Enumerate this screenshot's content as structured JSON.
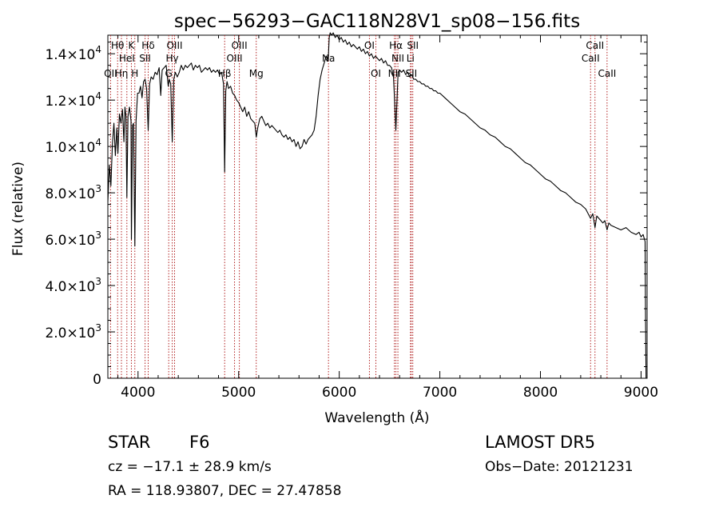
{
  "chart_data": {
    "type": "line",
    "title": "spec−56293−GAC118N28V1_sp08−156.fits",
    "xlabel": "Wavelength (Å)",
    "ylabel": "Flux (relative)",
    "xlim": [
      3700,
      9060
    ],
    "ylim": [
      0,
      14800
    ],
    "xticks": [
      4000,
      5000,
      6000,
      7000,
      8000,
      9000
    ],
    "xtick_labels": [
      "4000",
      "5000",
      "6000",
      "7000",
      "8000",
      "9000"
    ],
    "yticks": [
      0,
      2000,
      4000,
      6000,
      8000,
      10000,
      12000,
      14000
    ],
    "ytick_labels": [
      {
        "mant": "0",
        "exp": ""
      },
      {
        "mant": "2.0×10",
        "exp": "3"
      },
      {
        "mant": "4.0×10",
        "exp": "3"
      },
      {
        "mant": "6.0×10",
        "exp": "3"
      },
      {
        "mant": "8.0×10",
        "exp": "3"
      },
      {
        "mant": "1.0×10",
        "exp": "4"
      },
      {
        "mant": "1.2×10",
        "exp": "4"
      },
      {
        "mant": "1.4×10",
        "exp": "4"
      }
    ],
    "line_color": "#000000",
    "marker_color": "#b22222",
    "spectrum": [
      [
        3700,
        7600
      ],
      [
        3715,
        9200
      ],
      [
        3730,
        8300
      ],
      [
        3745,
        10100
      ],
      [
        3760,
        11000
      ],
      [
        3775,
        9600
      ],
      [
        3790,
        10800
      ],
      [
        3800,
        9700
      ],
      [
        3815,
        11400
      ],
      [
        3830,
        11000
      ],
      [
        3845,
        11600
      ],
      [
        3860,
        10200
      ],
      [
        3870,
        11700
      ],
      [
        3880,
        11300
      ],
      [
        3889,
        7800
      ],
      [
        3900,
        11300
      ],
      [
        3915,
        11700
      ],
      [
        3930,
        11100
      ],
      [
        3934,
        6000
      ],
      [
        3945,
        10900
      ],
      [
        3955,
        11000
      ],
      [
        3968,
        5700
      ],
      [
        3980,
        11100
      ],
      [
        3995,
        12300
      ],
      [
        4010,
        12300
      ],
      [
        4025,
        12600
      ],
      [
        4040,
        12100
      ],
      [
        4055,
        12800
      ],
      [
        4070,
        12900
      ],
      [
        4085,
        12500
      ],
      [
        4101,
        10700
      ],
      [
        4115,
        12700
      ],
      [
        4130,
        13000
      ],
      [
        4150,
        12900
      ],
      [
        4170,
        13200
      ],
      [
        4190,
        13100
      ],
      [
        4210,
        13400
      ],
      [
        4226,
        12200
      ],
      [
        4240,
        13300
      ],
      [
        4260,
        13400
      ],
      [
        4280,
        13500
      ],
      [
        4300,
        12600
      ],
      [
        4310,
        12900
      ],
      [
        4325,
        12700
      ],
      [
        4340,
        10200
      ],
      [
        4355,
        12900
      ],
      [
        4370,
        13200
      ],
      [
        4390,
        13000
      ],
      [
        4410,
        13200
      ],
      [
        4430,
        13500
      ],
      [
        4450,
        13300
      ],
      [
        4470,
        13500
      ],
      [
        4490,
        13400
      ],
      [
        4510,
        13500
      ],
      [
        4530,
        13600
      ],
      [
        4550,
        13300
      ],
      [
        4570,
        13500
      ],
      [
        4590,
        13400
      ],
      [
        4610,
        13500
      ],
      [
        4630,
        13200
      ],
      [
        4650,
        13300
      ],
      [
        4670,
        13400
      ],
      [
        4690,
        13300
      ],
      [
        4710,
        13400
      ],
      [
        4730,
        13200
      ],
      [
        4750,
        13300
      ],
      [
        4770,
        13200
      ],
      [
        4790,
        13300
      ],
      [
        4810,
        13100
      ],
      [
        4830,
        13200
      ],
      [
        4850,
        12700
      ],
      [
        4861,
        8900
      ],
      [
        4872,
        12400
      ],
      [
        4885,
        12800
      ],
      [
        4900,
        12500
      ],
      [
        4920,
        12600
      ],
      [
        4940,
        12300
      ],
      [
        4960,
        12200
      ],
      [
        4980,
        12000
      ],
      [
        5000,
        11900
      ],
      [
        5020,
        11700
      ],
      [
        5040,
        11500
      ],
      [
        5060,
        11700
      ],
      [
        5080,
        11300
      ],
      [
        5100,
        11500
      ],
      [
        5120,
        11200
      ],
      [
        5140,
        11100
      ],
      [
        5160,
        11000
      ],
      [
        5175,
        10400
      ],
      [
        5190,
        10800
      ],
      [
        5210,
        11200
      ],
      [
        5230,
        11300
      ],
      [
        5250,
        11100
      ],
      [
        5270,
        10900
      ],
      [
        5290,
        11000
      ],
      [
        5310,
        10800
      ],
      [
        5330,
        10900
      ],
      [
        5350,
        10800
      ],
      [
        5370,
        10700
      ],
      [
        5390,
        10600
      ],
      [
        5410,
        10700
      ],
      [
        5430,
        10500
      ],
      [
        5450,
        10400
      ],
      [
        5470,
        10500
      ],
      [
        5490,
        10300
      ],
      [
        5510,
        10400
      ],
      [
        5530,
        10200
      ],
      [
        5550,
        10300
      ],
      [
        5570,
        10000
      ],
      [
        5590,
        10200
      ],
      [
        5610,
        9900
      ],
      [
        5630,
        10000
      ],
      [
        5650,
        10300
      ],
      [
        5670,
        10100
      ],
      [
        5690,
        10300
      ],
      [
        5710,
        10400
      ],
      [
        5730,
        10500
      ],
      [
        5750,
        10700
      ],
      [
        5770,
        11300
      ],
      [
        5790,
        12200
      ],
      [
        5810,
        12900
      ],
      [
        5830,
        13300
      ],
      [
        5850,
        13600
      ],
      [
        5870,
        13900
      ],
      [
        5890,
        13700
      ],
      [
        5900,
        14700
      ],
      [
        5910,
        14900
      ],
      [
        5925,
        14800
      ],
      [
        5940,
        14900
      ],
      [
        5960,
        14700
      ],
      [
        5980,
        14800
      ],
      [
        6000,
        14600
      ],
      [
        6020,
        14700
      ],
      [
        6040,
        14500
      ],
      [
        6060,
        14600
      ],
      [
        6080,
        14400
      ],
      [
        6100,
        14500
      ],
      [
        6120,
        14300
      ],
      [
        6140,
        14400
      ],
      [
        6160,
        14300
      ],
      [
        6180,
        14200
      ],
      [
        6200,
        14300
      ],
      [
        6220,
        14100
      ],
      [
        6240,
        14200
      ],
      [
        6260,
        14000
      ],
      [
        6280,
        14100
      ],
      [
        6300,
        13900
      ],
      [
        6320,
        14000
      ],
      [
        6340,
        13800
      ],
      [
        6360,
        13900
      ],
      [
        6380,
        13800
      ],
      [
        6400,
        13700
      ],
      [
        6420,
        13800
      ],
      [
        6440,
        13600
      ],
      [
        6460,
        13700
      ],
      [
        6480,
        13500
      ],
      [
        6500,
        13500
      ],
      [
        6520,
        13400
      ],
      [
        6540,
        13000
      ],
      [
        6550,
        12000
      ],
      [
        6563,
        10700
      ],
      [
        6570,
        11500
      ],
      [
        6585,
        13200
      ],
      [
        6600,
        13300
      ],
      [
        6620,
        13200
      ],
      [
        6640,
        13300
      ],
      [
        6660,
        13100
      ],
      [
        6680,
        13200
      ],
      [
        6700,
        13000
      ],
      [
        6720,
        13100
      ],
      [
        6740,
        12900
      ],
      [
        6760,
        12900
      ],
      [
        6780,
        12800
      ],
      [
        6800,
        12800
      ],
      [
        6820,
        12700
      ],
      [
        6840,
        12700
      ],
      [
        6860,
        12600
      ],
      [
        6880,
        12600
      ],
      [
        6900,
        12500
      ],
      [
        6920,
        12500
      ],
      [
        6940,
        12400
      ],
      [
        6960,
        12400
      ],
      [
        6980,
        12300
      ],
      [
        7000,
        12300
      ],
      [
        7050,
        12100
      ],
      [
        7100,
        11900
      ],
      [
        7150,
        11700
      ],
      [
        7200,
        11500
      ],
      [
        7250,
        11400
      ],
      [
        7300,
        11200
      ],
      [
        7350,
        11000
      ],
      [
        7400,
        10800
      ],
      [
        7450,
        10700
      ],
      [
        7500,
        10500
      ],
      [
        7550,
        10400
      ],
      [
        7600,
        10200
      ],
      [
        7650,
        10000
      ],
      [
        7700,
        9900
      ],
      [
        7750,
        9700
      ],
      [
        7800,
        9500
      ],
      [
        7850,
        9300
      ],
      [
        7900,
        9200
      ],
      [
        7950,
        9000
      ],
      [
        8000,
        8800
      ],
      [
        8050,
        8600
      ],
      [
        8100,
        8500
      ],
      [
        8150,
        8300
      ],
      [
        8200,
        8100
      ],
      [
        8250,
        8000
      ],
      [
        8300,
        7800
      ],
      [
        8350,
        7600
      ],
      [
        8400,
        7500
      ],
      [
        8450,
        7300
      ],
      [
        8498,
        6900
      ],
      [
        8520,
        7100
      ],
      [
        8542,
        6500
      ],
      [
        8560,
        7000
      ],
      [
        8580,
        6900
      ],
      [
        8600,
        6800
      ],
      [
        8620,
        6700
      ],
      [
        8640,
        6800
      ],
      [
        8662,
        6400
      ],
      [
        8680,
        6700
      ],
      [
        8700,
        6600
      ],
      [
        8750,
        6500
      ],
      [
        8800,
        6400
      ],
      [
        8850,
        6500
      ],
      [
        8900,
        6300
      ],
      [
        8950,
        6200
      ],
      [
        8980,
        6300
      ],
      [
        9000,
        6100
      ],
      [
        9020,
        6200
      ],
      [
        9040,
        5900
      ],
      [
        9045,
        2400
      ],
      [
        9050,
        0
      ]
    ],
    "lines": [
      {
        "name": "OII",
        "x": 3727,
        "row": 3
      },
      {
        "name": "Hθ",
        "x": 3797,
        "row": 1
      },
      {
        "name": "Hη",
        "x": 3835,
        "row": 3
      },
      {
        "name": "HeI",
        "x": 3889,
        "row": 2
      },
      {
        "name": "K",
        "x": 3934,
        "row": 1
      },
      {
        "name": "H",
        "x": 3968,
        "row": 3
      },
      {
        "name": "SII",
        "x": 4070,
        "row": 2
      },
      {
        "name": "Hδ",
        "x": 4101,
        "row": 1
      },
      {
        "name": "G",
        "x": 4305,
        "row": 3
      },
      {
        "name": "Hγ",
        "x": 4340,
        "row": 2
      },
      {
        "name": "OIII",
        "x": 4363,
        "row": 1
      },
      {
        "name": "Hβ",
        "x": 4861,
        "row": 3
      },
      {
        "name": "OIII",
        "x": 4959,
        "row": 2
      },
      {
        "name": "OIII",
        "x": 5007,
        "row": 1
      },
      {
        "name": "Mg",
        "x": 5175,
        "row": 3
      },
      {
        "name": "Na",
        "x": 5893,
        "row": 2
      },
      {
        "name": "OI",
        "x": 6300,
        "row": 1
      },
      {
        "name": "OI",
        "x": 6364,
        "row": 3
      },
      {
        "name": "NII",
        "x": 6548,
        "row": 3
      },
      {
        "name": "Hα",
        "x": 6563,
        "row": 1
      },
      {
        "name": "NII",
        "x": 6583,
        "row": 2
      },
      {
        "name": "Li",
        "x": 6708,
        "row": 2
      },
      {
        "name": "SII",
        "x": 6716,
        "row": 3
      },
      {
        "name": "SII",
        "x": 6731,
        "row": 1
      },
      {
        "name": "CaII",
        "x": 8498,
        "row": 2
      },
      {
        "name": "CaII",
        "x": 8542,
        "row": 1
      },
      {
        "name": "CaII",
        "x": 8662,
        "row": 3
      }
    ]
  },
  "info": {
    "class": "STAR",
    "subclass": "F6",
    "cz": "cz = −17.1 ± 28.9 km/s",
    "coords": "RA = 118.93807, DEC =  27.47858",
    "survey": "LAMOST DR5",
    "obs_date": "Obs−Date: 20121231"
  }
}
